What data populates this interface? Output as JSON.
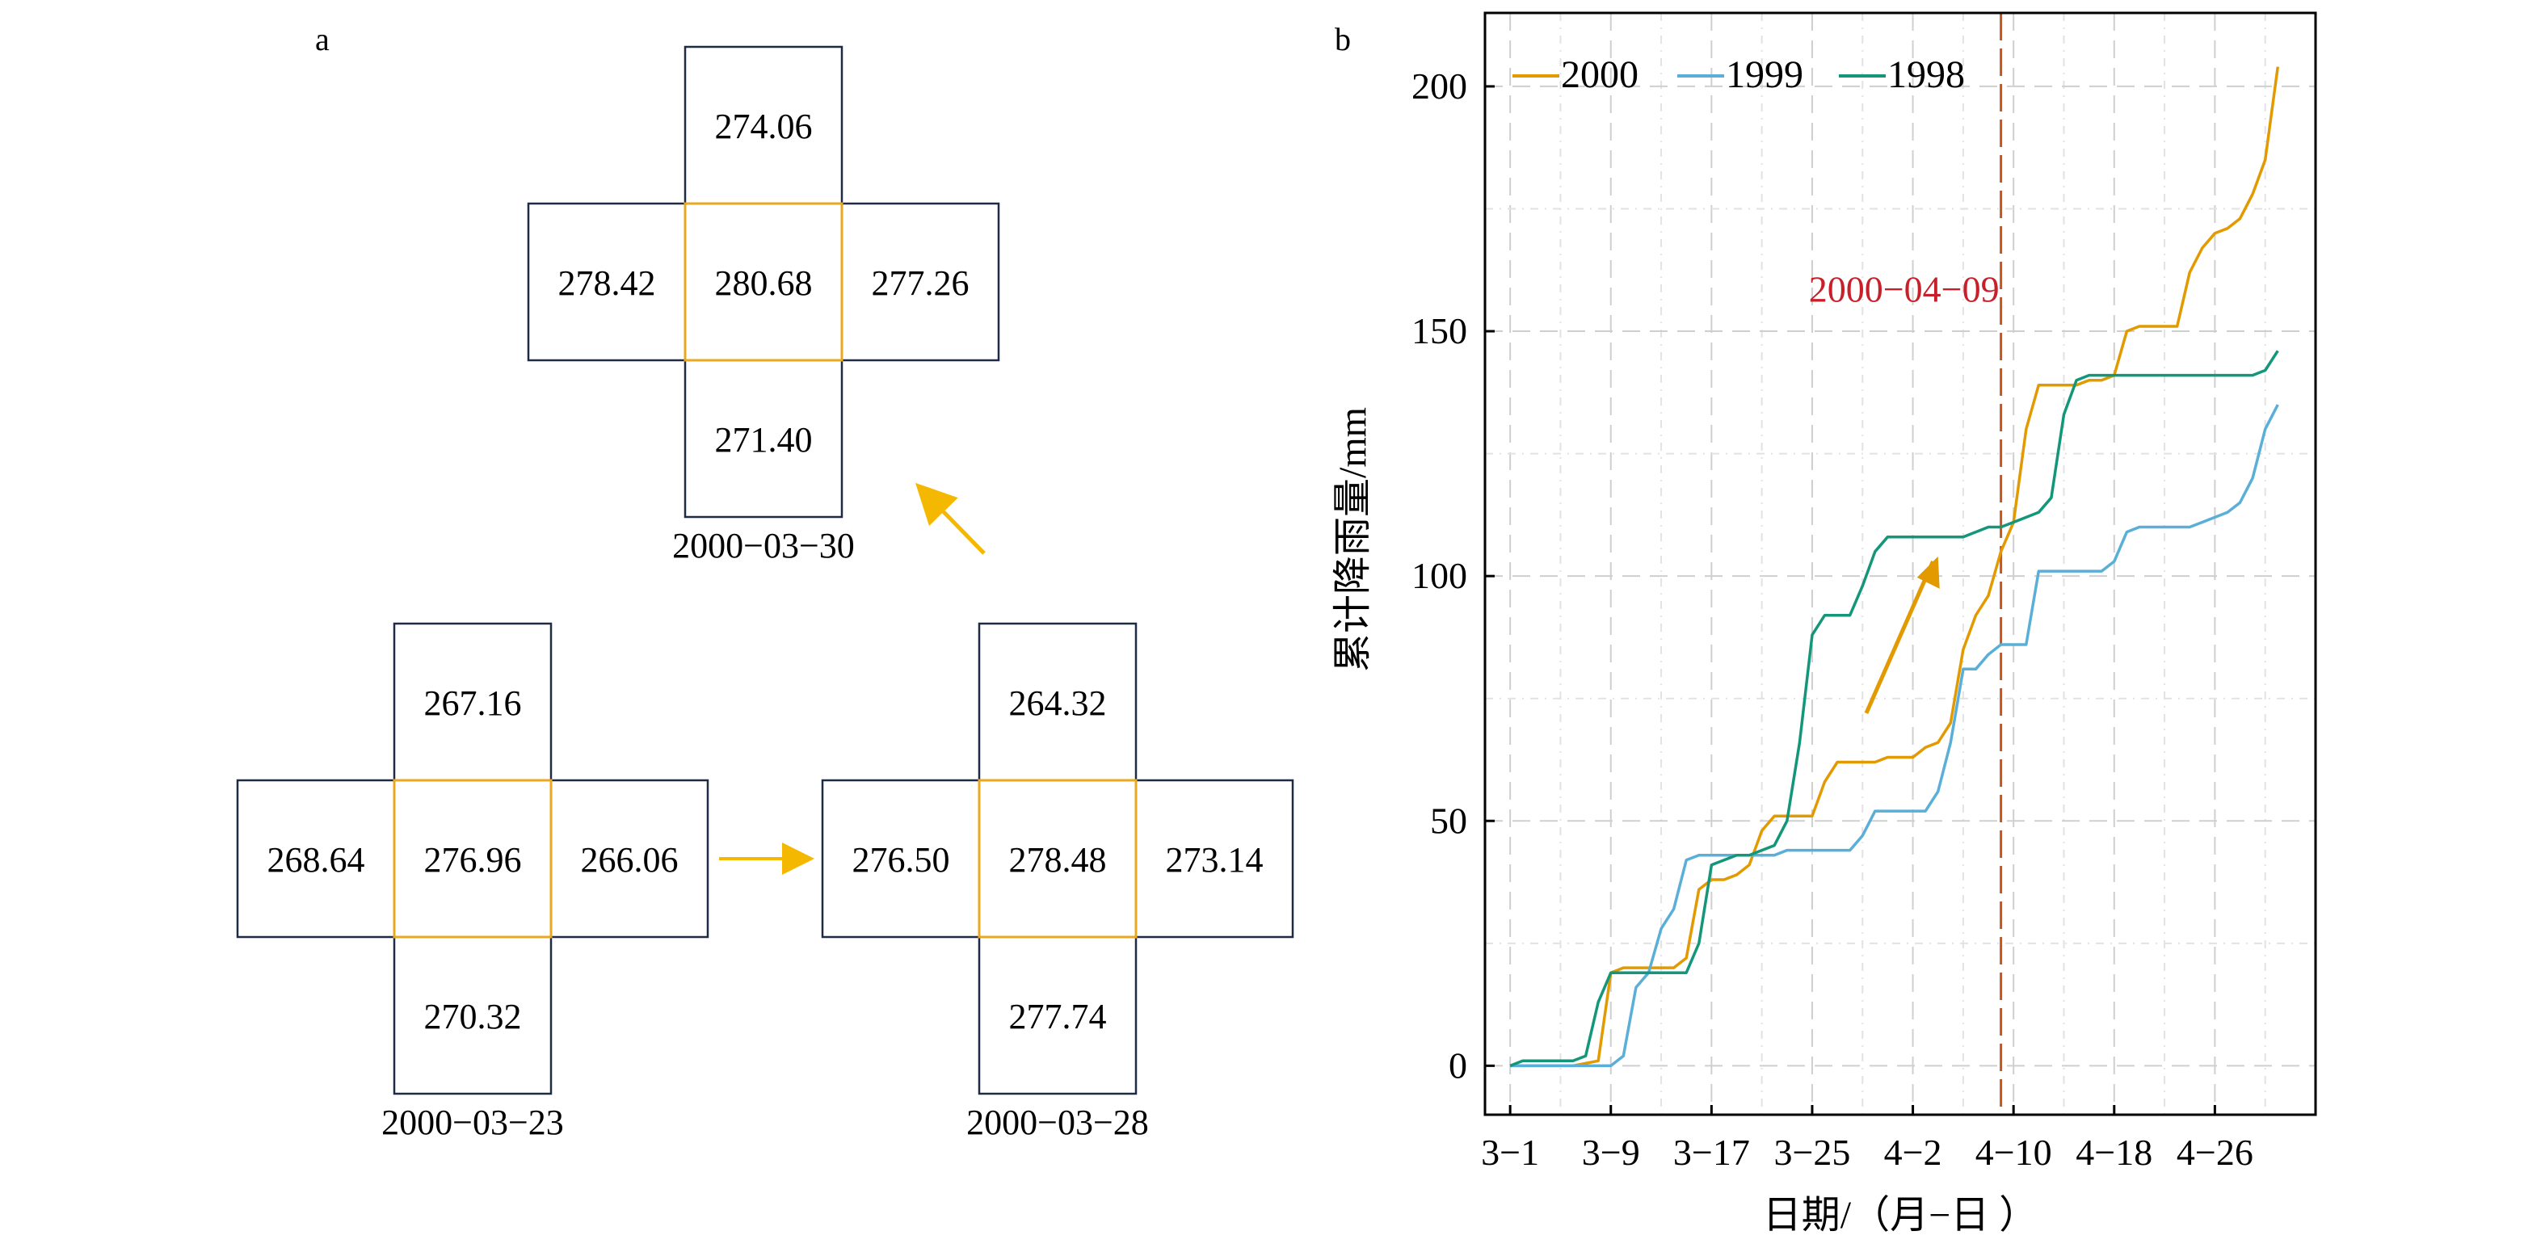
{
  "panel_a": {
    "label": "a",
    "arrow_color": "#F5B800",
    "box_border_color": "#1F2A44",
    "center_border_color": "#E8A920",
    "crosses": [
      {
        "date": "2000−03−30",
        "top": "274.06",
        "left": "278.42",
        "center": "280.68",
        "right": "277.26",
        "bottom": "271.40"
      },
      {
        "date": "2000−03−23",
        "top": "267.16",
        "left": "268.64",
        "center": "276.96",
        "right": "266.06",
        "bottom": "270.32"
      },
      {
        "date": "2000−03−28",
        "top": "264.32",
        "left": "276.50",
        "center": "278.48",
        "right": "273.14",
        "bottom": "277.74"
      }
    ]
  },
  "chart_data": {
    "type": "line",
    "label": "b",
    "xlabel": "日期/（月−日 ）",
    "ylabel": "累计降雨量/mm",
    "xlim": [
      -2,
      64
    ],
    "ylim": [
      -10,
      215
    ],
    "x_ticks": [
      {
        "x": 0,
        "label": "3−1"
      },
      {
        "x": 8,
        "label": "3−9"
      },
      {
        "x": 16,
        "label": "3−17"
      },
      {
        "x": 24,
        "label": "3−25"
      },
      {
        "x": 32,
        "label": "4−2"
      },
      {
        "x": 40,
        "label": "4−10"
      },
      {
        "x": 48,
        "label": "4−18"
      },
      {
        "x": 56,
        "label": "4−26"
      }
    ],
    "y_ticks": [
      0,
      50,
      100,
      150,
      200
    ],
    "grid": true,
    "legend_position": "top-left",
    "annotation": {
      "text": "2000−04−09",
      "x": 39,
      "color": "#C8202A",
      "line_color": "#C8561A"
    },
    "arrow_color": "#E29A00",
    "series": [
      {
        "name": "2000",
        "color": "#E29A00",
        "x": [
          0,
          5,
          7,
          8,
          9,
          10,
          11,
          12,
          13,
          14,
          15,
          16,
          17,
          18,
          19,
          20,
          21,
          22,
          23,
          24,
          25,
          26,
          27,
          28,
          29,
          30,
          31,
          32,
          33,
          34,
          35,
          36,
          37,
          38,
          39,
          40,
          41,
          42,
          43,
          44,
          45,
          46,
          47,
          48,
          49,
          50,
          51,
          52,
          53,
          54,
          55,
          56,
          57,
          58,
          59,
          60,
          61
        ],
        "values": [
          0,
          0,
          1,
          19,
          20,
          20,
          20,
          20,
          20,
          22,
          36,
          38,
          38,
          39,
          41,
          48,
          51,
          51,
          51,
          51,
          58,
          62,
          62,
          62,
          62,
          63,
          63,
          63,
          65,
          66,
          70,
          85,
          92,
          96,
          105,
          111,
          130,
          139,
          139,
          139,
          139,
          140,
          140,
          141,
          150,
          151,
          151,
          151,
          151,
          162,
          167,
          170,
          171,
          173,
          178,
          185,
          204
        ]
      },
      {
        "name": "1999",
        "color": "#5AAFD8",
        "x": [
          0,
          2,
          4,
          5,
          6,
          7,
          8,
          9,
          10,
          11,
          12,
          13,
          14,
          15,
          16,
          17,
          18,
          19,
          20,
          21,
          22,
          23,
          24,
          25,
          26,
          27,
          28,
          29,
          30,
          31,
          32,
          33,
          34,
          35,
          36,
          37,
          38,
          39,
          40,
          41,
          42,
          43,
          44,
          45,
          46,
          47,
          48,
          49,
          50,
          51,
          52,
          53,
          54,
          55,
          56,
          57,
          58,
          59,
          60,
          61
        ],
        "values": [
          0,
          0,
          0,
          0,
          0,
          0,
          0,
          2,
          16,
          19,
          28,
          32,
          42,
          43,
          43,
          43,
          43,
          43,
          43,
          43,
          44,
          44,
          44,
          44,
          44,
          44,
          47,
          52,
          52,
          52,
          52,
          52,
          56,
          66,
          81,
          81,
          84,
          86,
          86,
          86,
          101,
          101,
          101,
          101,
          101,
          101,
          103,
          109,
          110,
          110,
          110,
          110,
          110,
          111,
          112,
          113,
          115,
          120,
          130,
          135
        ]
      },
      {
        "name": "1998",
        "color": "#13967A",
        "x": [
          0,
          1,
          2,
          3,
          4,
          5,
          6,
          7,
          8,
          9,
          10,
          11,
          12,
          13,
          14,
          15,
          16,
          17,
          18,
          19,
          20,
          21,
          22,
          23,
          24,
          25,
          26,
          27,
          28,
          29,
          30,
          31,
          32,
          33,
          34,
          35,
          36,
          37,
          38,
          39,
          40,
          41,
          42,
          43,
          44,
          45,
          46,
          47,
          48,
          49,
          50,
          51,
          52,
          53,
          54,
          55,
          56,
          57,
          58,
          59,
          60,
          61
        ],
        "values": [
          0,
          1,
          1,
          1,
          1,
          1,
          2,
          13,
          19,
          19,
          19,
          19,
          19,
          19,
          19,
          25,
          41,
          42,
          43,
          43,
          44,
          45,
          50,
          66,
          88,
          92,
          92,
          92,
          98,
          105,
          108,
          108,
          108,
          108,
          108,
          108,
          108,
          109,
          110,
          110,
          111,
          112,
          113,
          116,
          133,
          140,
          141,
          141,
          141,
          141,
          141,
          141,
          141,
          141,
          141,
          141,
          141,
          141,
          141,
          141,
          142,
          146
        ]
      }
    ]
  }
}
